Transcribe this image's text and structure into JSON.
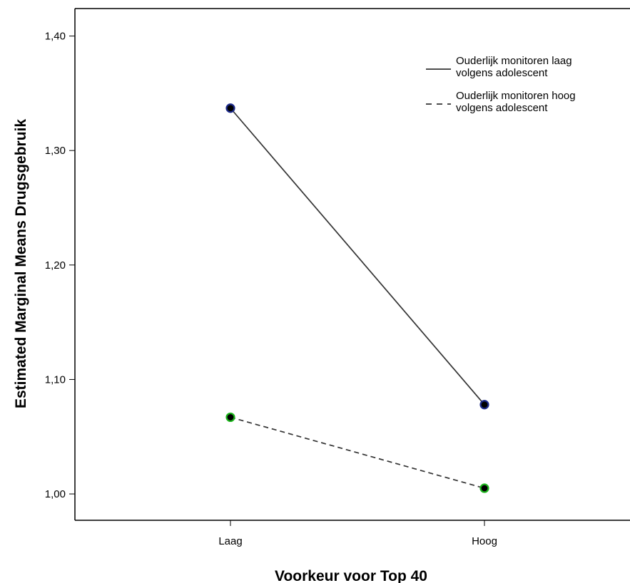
{
  "chart_data": {
    "type": "line",
    "title": "",
    "xlabel": "Voorkeur voor Top 40",
    "ylabel": "Estimated Marginal Means Drugsgebruik",
    "categories": [
      "Laag",
      "Hoog"
    ],
    "ylim": [
      0.977,
      1.424
    ],
    "yticks": [
      "1,00",
      "1,10",
      "1,20",
      "1,30",
      "1,40"
    ],
    "ytick_values": [
      1.0,
      1.1,
      1.2,
      1.3,
      1.4
    ],
    "grid": false,
    "legend_position": "top-right",
    "series": [
      {
        "name": "Ouderlijk monitoren laag volgens adolescent",
        "legend_lines": [
          "Ouderlijk monitoren laag",
          "volgens adolescent"
        ],
        "values": [
          1.337,
          1.078
        ],
        "line_style": "solid",
        "line_color": "#333333",
        "marker_color": "#1c2a8a"
      },
      {
        "name": "Ouderlijk monitoren hoog volgens adolescent",
        "legend_lines": [
          "Ouderlijk monitoren hoog",
          "volgens adolescent"
        ],
        "values": [
          1.067,
          1.005
        ],
        "line_style": "dashed",
        "line_color": "#333333",
        "marker_color": "#1db51d"
      }
    ]
  }
}
